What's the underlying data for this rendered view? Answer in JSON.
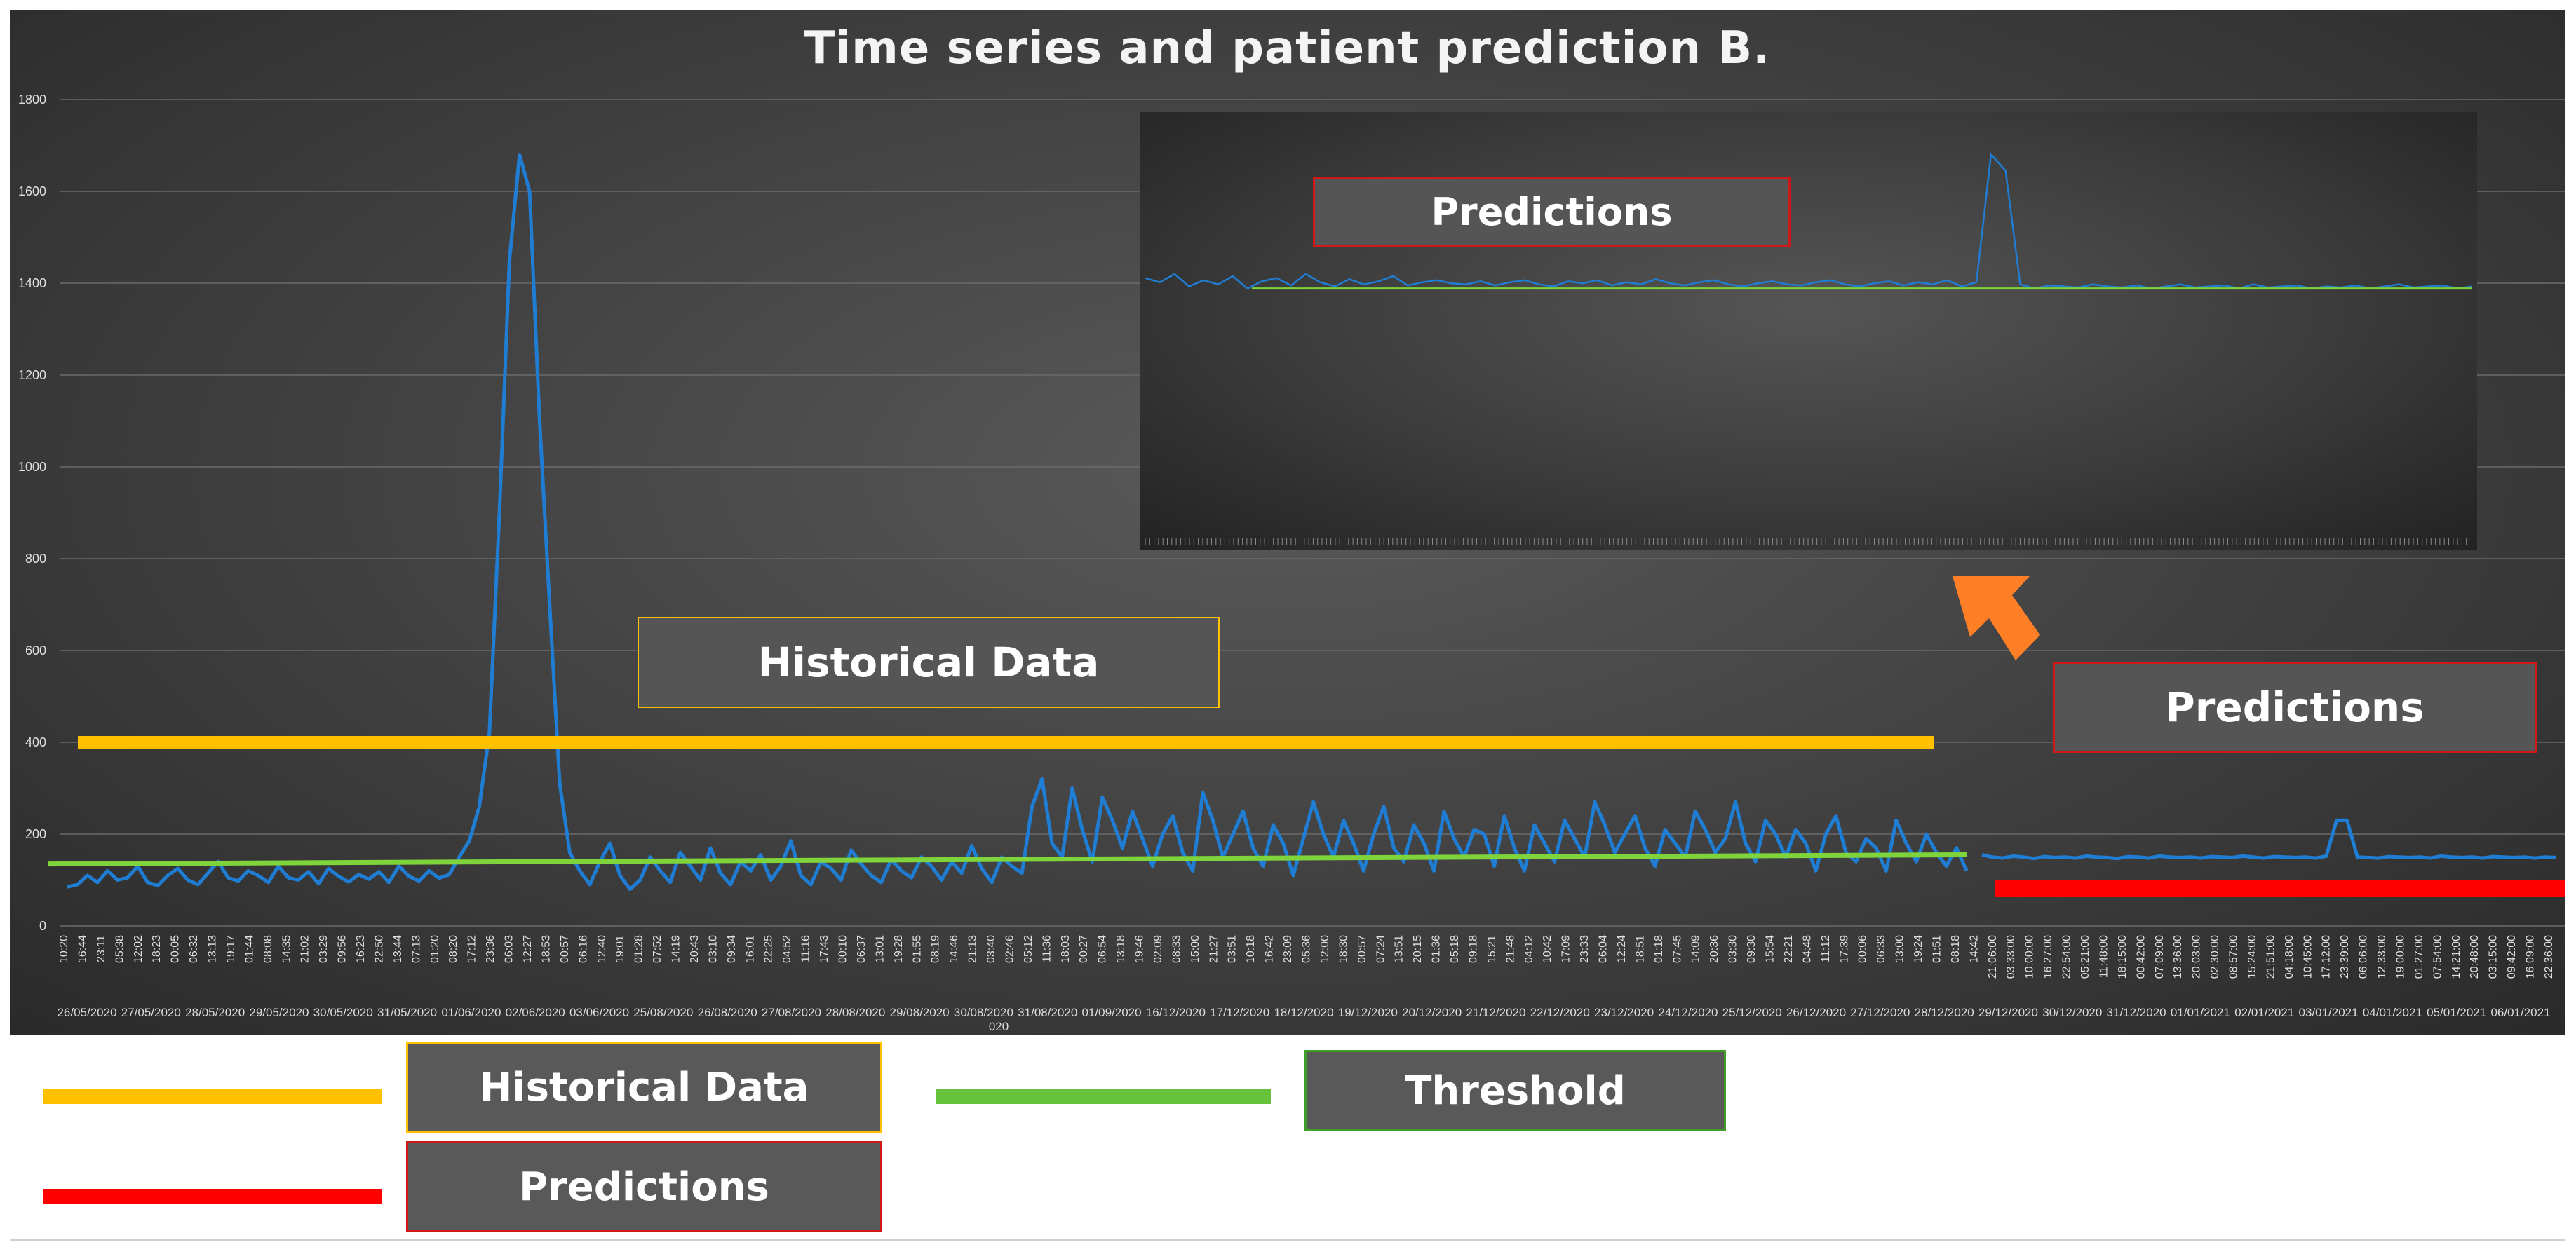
{
  "chart_data": {
    "type": "line",
    "title": "Time series and patient prediction B.",
    "ylim": [
      0,
      1800
    ],
    "y_ticks": [
      "0",
      "200",
      "400",
      "600",
      "800",
      "1000",
      "1200",
      "1400",
      "1600",
      "1800"
    ],
    "grid": true,
    "x_tick_labels_time": [
      "10:20",
      "16:44",
      "23:11",
      "05:38",
      "12:02",
      "18:23",
      "00:05",
      "06:32",
      "13:13",
      "19:17",
      "01:44",
      "08:08",
      "14:35",
      "21:02",
      "03:29",
      "09:56",
      "16:23",
      "22:50",
      "13:44",
      "07:13",
      "01:20",
      "08:20",
      "17:12",
      "23:36",
      "06:03",
      "12:27",
      "18:53",
      "00:57",
      "06:16",
      "12:40",
      "19:01",
      "01:28",
      "07:52",
      "14:19",
      "20:43",
      "03:10",
      "09:34",
      "16:01",
      "22:25",
      "04:52",
      "11:16",
      "17:43",
      "00:10",
      "06:37",
      "13:01",
      "19:28",
      "01:55",
      "08:19",
      "14:46",
      "21:13",
      "03:40",
      "02:46",
      "05:12",
      "11:36",
      "18:03",
      "00:27",
      "06:54",
      "13:18",
      "19:46",
      "02:09",
      "08:33",
      "15:00",
      "21:27",
      "03:51",
      "10:18",
      "16:42",
      "23:09",
      "05:36",
      "12:00",
      "18:30",
      "00:57",
      "07:24",
      "13:51",
      "20:15",
      "01:36",
      "05:18",
      "09:18",
      "15:21",
      "21:48",
      "04:12",
      "10:42",
      "17:09",
      "23:33",
      "06:04",
      "12:24",
      "18:51",
      "01:18",
      "07:45",
      "14:09",
      "20:36",
      "03:30",
      "09:30",
      "15:54",
      "22:21",
      "04:48",
      "11:12",
      "17:39",
      "00:06",
      "06:33",
      "13:00",
      "19:24",
      "01:51",
      "08:18",
      "14:42",
      "21:06:00",
      "03:33:00",
      "10:00:00",
      "16:27:00",
      "22:54:00",
      "05:21:00",
      "11:48:00",
      "18:15:00",
      "00:42:00",
      "07:09:00",
      "13:36:00",
      "20:03:00",
      "02:30:00",
      "08:57:00",
      "15:24:00",
      "21:51:00",
      "04:18:00",
      "10:45:00",
      "17:12:00",
      "23:39:00",
      "06:06:00",
      "12:33:00",
      "19:00:00",
      "01:27:00",
      "07:54:00",
      "14:21:00",
      "20:48:00",
      "03:15:00",
      "09:42:00",
      "16:09:00",
      "22:36:00"
    ],
    "x_tick_labels_date": [
      "26/05/2020",
      "27/05/2020",
      "28/05/2020",
      "29/05/2020",
      "30/05/2020",
      "31/05/2020",
      "01/06/2020",
      "02/06/2020",
      "03/06/2020",
      "25/08/2020",
      "26/08/2020",
      "27/08/2020",
      "28/08/2020",
      "29/08/2020",
      "30/08/2020",
      "31/08/2020",
      "01/09/2020",
      "16/12/2020",
      "17/12/2020",
      "18/12/2020",
      "19/12/2020",
      "20/12/2020",
      "21/12/2020",
      "22/12/2020",
      "23/12/2020",
      "24/12/2020",
      "25/12/2020",
      "26/12/2020",
      "27/12/2020",
      "28/12/2020",
      "29/12/2020",
      "30/12/2020",
      "31/12/2020",
      "01/01/2021",
      "02/01/2021",
      "03/01/2021",
      "04/01/2021",
      "05/01/2021",
      "06/01/2021"
    ],
    "x_tick_extra": "020",
    "series": [
      {
        "name": "",
        "segment": "history",
        "y_range": [
          40,
          1680
        ],
        "values": [
          85,
          90,
          110,
          95,
          120,
          100,
          105,
          130,
          95,
          88,
          110,
          125,
          100,
          90,
          115,
          140,
          105,
          98,
          120,
          110,
          95,
          130,
          105,
          100,
          118,
          92,
          125,
          108,
          96,
          112,
          102,
          118,
          95,
          130,
          108,
          98,
          120,
          104,
          112,
          150,
          185,
          260,
          420,
          900,
          1450,
          1680,
          1600,
          1100,
          700,
          310,
          160,
          120,
          90,
          140,
          180,
          110,
          80,
          100,
          150,
          120,
          95,
          160,
          130,
          100,
          170,
          115,
          90,
          140,
          120,
          155,
          100,
          130,
          185,
          110,
          90,
          140,
          125,
          100,
          165,
          135,
          110,
          95,
          145,
          120,
          105,
          150,
          130,
          100,
          140,
          115,
          175,
          125,
          95,
          150,
          130,
          115,
          260,
          320,
          180,
          150,
          300,
          210,
          140,
          280,
          230,
          170,
          250,
          190,
          130,
          200,
          240,
          160,
          120,
          290,
          230,
          150,
          200,
          250,
          170,
          130,
          220,
          180,
          110,
          190,
          270,
          200,
          150,
          230,
          180,
          120,
          200,
          260,
          170,
          140,
          220,
          180,
          120,
          250,
          190,
          150,
          210,
          200,
          130,
          240,
          170,
          120,
          220,
          180,
          140,
          230,
          190,
          150,
          270,
          220,
          160,
          200,
          240,
          170,
          130,
          210,
          180,
          150,
          250,
          210,
          160,
          190,
          270,
          180,
          140,
          230,
          200,
          150,
          210,
          180,
          120,
          200,
          240,
          160,
          140,
          190,
          170,
          120,
          230,
          180,
          140,
          200,
          160,
          130,
          170,
          120
        ]
      },
      {
        "name": "",
        "segment": "prediction",
        "values": [
          155,
          150,
          148,
          152,
          150,
          147,
          151,
          149,
          150,
          148,
          152,
          150,
          149,
          147,
          151,
          150,
          148,
          152,
          150,
          149,
          150,
          148,
          151,
          150,
          149,
          152,
          150,
          148,
          151,
          150,
          149,
          150,
          148,
          152,
          230,
          230,
          150,
          149,
          148,
          151,
          150,
          149,
          150,
          148,
          152,
          150,
          149,
          150,
          148,
          151,
          150,
          149,
          150,
          148,
          150,
          149
        ]
      }
    ],
    "threshold": {
      "start": 135,
      "end": 155
    },
    "historical_marker_level": 400,
    "legend": [
      {
        "label": "Historical Data",
        "color": "#ffc000"
      },
      {
        "label": "Threshold",
        "color": "#66c23a"
      },
      {
        "label": "Predictions",
        "color": "#ff0000"
      }
    ],
    "colors": {
      "series": "#1f7ed4",
      "history": "#ffc000",
      "threshold": "#7ed43a",
      "prediction": "#ff0000",
      "arrow": "#ff7f27"
    },
    "annotations": {
      "historical": "Historical Data",
      "predictions": "Predictions",
      "inset_predictions": "Predictions"
    },
    "inset": {
      "series_values": [
        1080,
        1060,
        1100,
        1040,
        1070,
        1050,
        1090,
        1030,
        1065,
        1080,
        1045,
        1100,
        1060,
        1040,
        1075,
        1050,
        1065,
        1090,
        1045,
        1060,
        1070,
        1055,
        1050,
        1065,
        1045,
        1060,
        1070,
        1050,
        1040,
        1065,
        1055,
        1070,
        1045,
        1060,
        1050,
        1075,
        1055,
        1045,
        1060,
        1070,
        1050,
        1040,
        1055,
        1065,
        1050,
        1045,
        1060,
        1070,
        1050,
        1040,
        1055,
        1065,
        1045,
        1060,
        1050,
        1070,
        1040,
        1060,
        1680,
        1600,
        1050,
        1030,
        1045,
        1040,
        1035,
        1050,
        1040,
        1035,
        1045,
        1030,
        1040,
        1050,
        1035,
        1040,
        1045,
        1030,
        1050,
        1035,
        1040,
        1045,
        1030,
        1040,
        1035,
        1045,
        1030,
        1040,
        1050,
        1035,
        1040,
        1045,
        1030,
        1040
      ],
      "threshold_level": 1030
    }
  }
}
